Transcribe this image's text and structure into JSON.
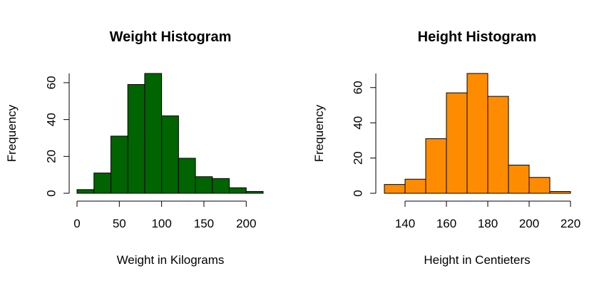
{
  "chart_data": [
    {
      "type": "bar",
      "title": "Weight Histogram",
      "xlabel": "Weight in Kilograms",
      "ylabel": "Frequency",
      "bar_color": "#006400",
      "bins": [
        [
          0,
          20
        ],
        [
          20,
          40
        ],
        [
          40,
          60
        ],
        [
          60,
          80
        ],
        [
          80,
          100
        ],
        [
          100,
          120
        ],
        [
          120,
          140
        ],
        [
          140,
          160
        ],
        [
          160,
          180
        ],
        [
          180,
          200
        ],
        [
          200,
          220
        ]
      ],
      "values": [
        2,
        11,
        31,
        59,
        65,
        42,
        19,
        9,
        8,
        3,
        1
      ],
      "xlim": [
        0,
        220
      ],
      "ylim": [
        0,
        65
      ],
      "x_ticks": [
        0,
        50,
        100,
        150,
        200
      ],
      "x_tick_labels": [
        "0",
        "50",
        "100",
        "150",
        "200"
      ],
      "y_ticks": [
        0,
        20,
        40,
        60
      ],
      "y_tick_labels": [
        "0",
        "20",
        "40",
        "60"
      ],
      "grid": false
    },
    {
      "type": "bar",
      "title": "Height Histogram",
      "xlabel": "Height in Centieters",
      "ylabel": "Frequency",
      "bar_color": "#FF8C00",
      "bins": [
        [
          130,
          140
        ],
        [
          140,
          150
        ],
        [
          150,
          160
        ],
        [
          160,
          170
        ],
        [
          170,
          180
        ],
        [
          180,
          190
        ],
        [
          190,
          200
        ],
        [
          200,
          210
        ],
        [
          210,
          220
        ]
      ],
      "values": [
        5,
        8,
        31,
        57,
        68,
        55,
        16,
        9,
        1
      ],
      "xlim": [
        130,
        220
      ],
      "ylim": [
        0,
        68
      ],
      "x_ticks": [
        140,
        160,
        180,
        200,
        220
      ],
      "x_tick_labels": [
        "140",
        "160",
        "180",
        "200",
        "220"
      ],
      "y_ticks": [
        0,
        20,
        40,
        60
      ],
      "y_tick_labels": [
        "0",
        "20",
        "40",
        "60"
      ],
      "grid": false
    }
  ]
}
